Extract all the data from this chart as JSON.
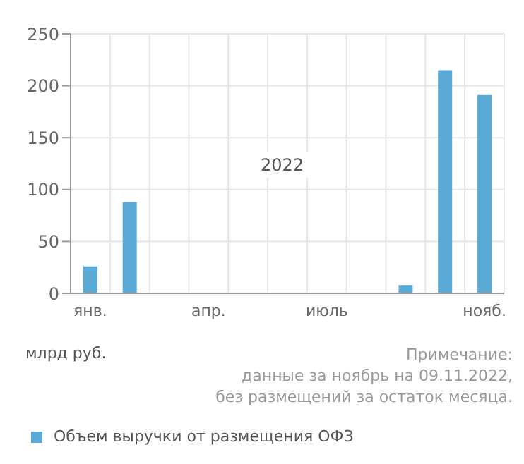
{
  "chart_data": {
    "type": "bar",
    "categories": [
      "янв.",
      null,
      null,
      "апр.",
      null,
      null,
      "июль",
      null,
      null,
      null,
      "нояб."
    ],
    "series": [
      {
        "name": "Объем выручки от размещения ОФЗ",
        "color": "#5aaad6",
        "values": [
          26,
          88,
          0,
          0,
          0,
          0,
          0,
          0,
          8,
          215,
          191
        ]
      }
    ],
    "ylim": [
      0,
      250
    ],
    "yticks": [
      0,
      50,
      100,
      150,
      200,
      250
    ],
    "grid": true,
    "legend": "bottom",
    "ylabel": "млрд руб.",
    "annotations": [
      "2022",
      "Примечание:\nданные за ноябрь на 09.11.2022,\nбез размещений за остаток месяца."
    ]
  }
}
